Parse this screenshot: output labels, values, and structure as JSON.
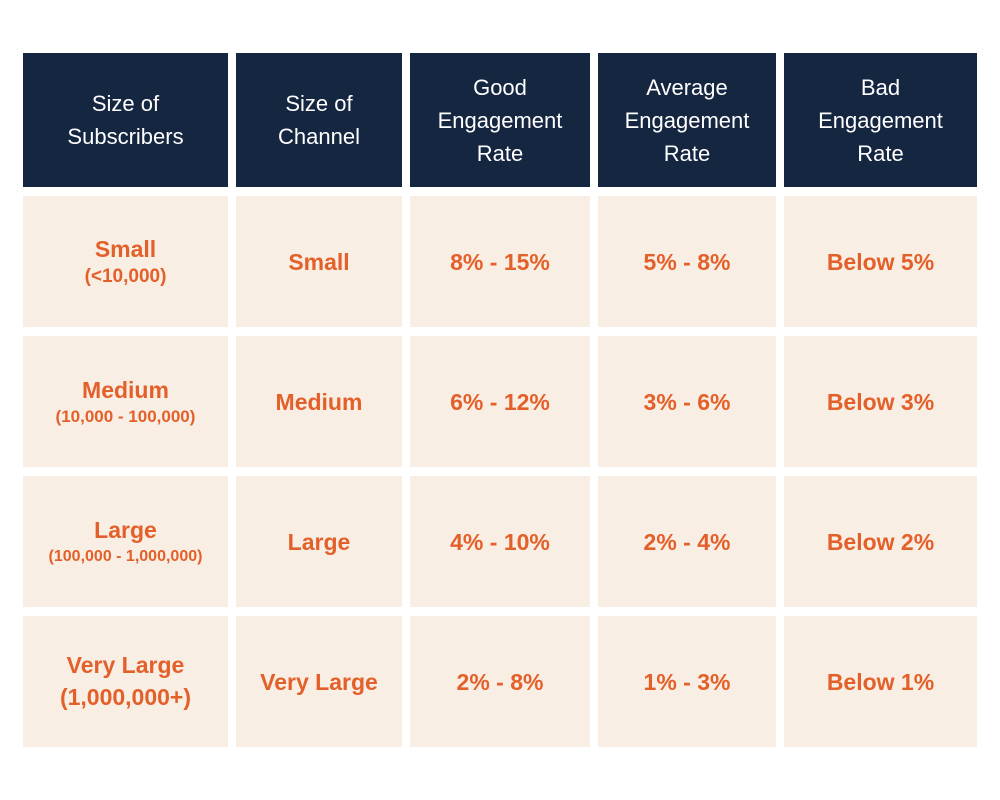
{
  "table": {
    "headers": [
      [
        "Size of",
        "Subscribers"
      ],
      [
        "Size of",
        "Channel"
      ],
      [
        "Good",
        "Engagement",
        "Rate"
      ],
      [
        "Average",
        "Engagement",
        "Rate"
      ],
      [
        "Bad",
        "Engagement",
        "Rate"
      ]
    ],
    "rows": [
      {
        "subscribers_label": "Small",
        "subscribers_range": "(<10,000)",
        "channel": "Small",
        "good": "8% - 15%",
        "average": "5% - 8%",
        "bad": "Below 5%"
      },
      {
        "subscribers_label": "Medium",
        "subscribers_range": "(10,000 - 100,000)",
        "channel": "Medium",
        "good": "6% - 12%",
        "average": "3% - 6%",
        "bad": "Below 3%"
      },
      {
        "subscribers_label": "Large",
        "subscribers_range": "(100,000 - 1,000,000)",
        "channel": "Large",
        "good": "4% - 10%",
        "average": "2% - 4%",
        "bad": "Below 2%"
      },
      {
        "subscribers_label": "Very Large",
        "subscribers_range": "(1,000,000+)",
        "channel": "Very Large",
        "good": "2% - 8%",
        "average": "1% - 3%",
        "bad": "Below 1%"
      }
    ]
  },
  "colors": {
    "header_bg": "#152641",
    "header_text": "#ffffff",
    "cell_bg": "#f8eee3",
    "cell_text": "#e4602a"
  }
}
